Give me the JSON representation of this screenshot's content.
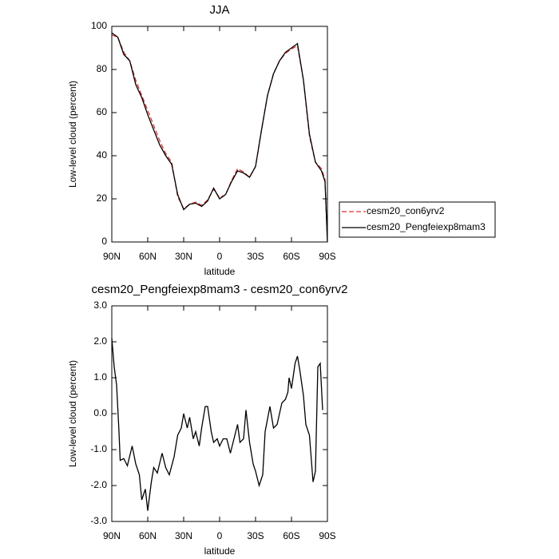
{
  "chart_data": [
    {
      "type": "line",
      "title": "JJA",
      "x_label": "latitude",
      "y_label": "Low-level cloud (percent)",
      "x": [
        90,
        85,
        80,
        75,
        70,
        65,
        60,
        55,
        50,
        45,
        40,
        35,
        30,
        25,
        20,
        15,
        10,
        5,
        0,
        -5,
        -10,
        -15,
        -20,
        -25,
        -30,
        -35,
        -40,
        -45,
        -50,
        -55,
        -60,
        -65,
        -70,
        -75,
        -80,
        -85,
        -88,
        -90
      ],
      "series": [
        {
          "name": "cesm20_con6yrv2",
          "color": "#e03030",
          "dash": true,
          "values": [
            96,
            95,
            88,
            84,
            75,
            68,
            61,
            54,
            47,
            41,
            37,
            21,
            15.5,
            17.5,
            18.5,
            17,
            19.5,
            24.5,
            20.5,
            22,
            28.5,
            34,
            32.5,
            30,
            35,
            52,
            68,
            78,
            84,
            87.5,
            89.5,
            91,
            75,
            49,
            37,
            34,
            29,
            0
          ]
        },
        {
          "name": "cesm20_Pengfeiexp8mam3",
          "color": "#000000",
          "dash": false,
          "values": [
            97,
            95,
            87,
            84,
            73,
            67,
            59,
            52,
            45,
            40,
            36,
            22,
            15,
            17.5,
            18,
            16.5,
            19,
            25,
            20,
            22,
            28,
            33,
            32,
            30,
            35,
            52,
            68,
            78,
            84,
            88,
            90,
            92,
            75,
            50,
            37,
            33,
            28,
            0
          ]
        }
      ],
      "xlim": [
        90,
        -90
      ],
      "xticks": [
        {
          "value": 90,
          "label": "90N"
        },
        {
          "value": 60,
          "label": "60N"
        },
        {
          "value": 30,
          "label": "30N"
        },
        0,
        {
          "value": -30,
          "label": "30S"
        },
        {
          "value": -60,
          "label": "60S"
        },
        {
          "value": -90,
          "label": "90S"
        }
      ],
      "ylim": [
        0,
        100
      ],
      "yticks": [
        0,
        20,
        40,
        60,
        80,
        100
      ],
      "legend": "right"
    },
    {
      "type": "line",
      "title": "cesm20_Pengfeiexp8mam3 - cesm20_con6yrv2",
      "x_label": "latitude",
      "y_label": "Low-level cloud (percent)",
      "x": [
        90,
        88,
        86,
        84,
        83,
        80,
        77,
        73,
        70,
        67,
        65,
        62,
        60,
        57,
        55,
        52,
        48,
        45,
        42,
        38,
        35,
        32,
        30,
        27,
        25,
        22,
        20,
        17,
        15,
        12,
        10,
        7,
        5,
        2,
        0,
        -3,
        -6,
        -9,
        -12,
        -15,
        -17,
        -20,
        -22,
        -25,
        -28,
        -30,
        -33,
        -36,
        -38,
        -42,
        -45,
        -48,
        -50,
        -52,
        -55,
        -57,
        -58,
        -60,
        -63,
        -65,
        -67,
        -70,
        -72,
        -75,
        -78,
        -80,
        -82,
        -84,
        -86
      ],
      "values": [
        2.1,
        1.3,
        0.8,
        -0.5,
        -1.3,
        -1.25,
        -1.45,
        -0.9,
        -1.4,
        -1.7,
        -2.4,
        -2.1,
        -2.7,
        -1.9,
        -1.5,
        -1.65,
        -1.1,
        -1.5,
        -1.7,
        -1.2,
        -0.6,
        -0.4,
        0.0,
        -0.4,
        -0.1,
        -0.7,
        -0.5,
        -0.9,
        -0.4,
        0.2,
        0.2,
        -0.5,
        -0.8,
        -0.7,
        -0.9,
        -0.7,
        -0.7,
        -1.1,
        -0.7,
        -0.3,
        -0.8,
        -0.7,
        0.1,
        -0.8,
        -1.4,
        -1.6,
        -2.0,
        -1.7,
        -0.5,
        0.2,
        -0.4,
        -0.3,
        0.0,
        0.3,
        0.4,
        0.6,
        1.0,
        0.7,
        1.4,
        1.6,
        1.2,
        0.5,
        -0.3,
        -0.6,
        -1.9,
        -1.6,
        1.3,
        1.4,
        0.1
      ],
      "color": "#000000",
      "xlim": [
        90,
        -90
      ],
      "xticks": [
        {
          "value": 90,
          "label": "90N"
        },
        {
          "value": 60,
          "label": "60N"
        },
        {
          "value": 30,
          "label": "30N"
        },
        0,
        {
          "value": -30,
          "label": "30S"
        },
        {
          "value": -60,
          "label": "60S"
        },
        {
          "value": -90,
          "label": "90S"
        }
      ],
      "ylim": [
        -3,
        3
      ],
      "yticks": [
        {
          "value": -3,
          "label": "-3.0"
        },
        {
          "value": -2,
          "label": "-2.0"
        },
        {
          "value": -1,
          "label": "-1.0"
        },
        {
          "value": 0,
          "label": "0.0"
        },
        {
          "value": 1,
          "label": "1.0"
        },
        {
          "value": 2,
          "label": "2.0"
        },
        {
          "value": 3,
          "label": "3.0"
        }
      ]
    }
  ]
}
